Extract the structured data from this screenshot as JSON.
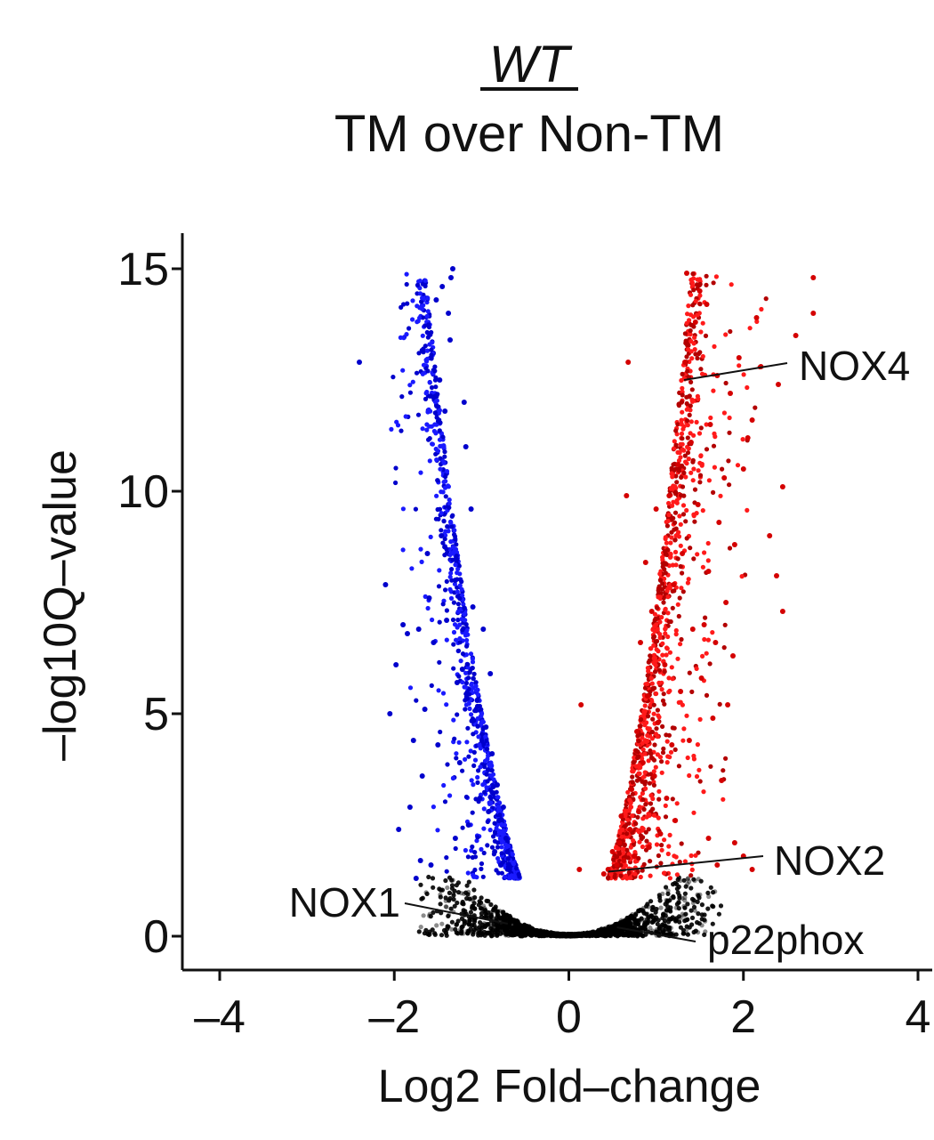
{
  "title": {
    "line1": "WT",
    "line2": "TM over Non-TM"
  },
  "colors": {
    "up": "#d40000",
    "down": "#0000cc",
    "ns": "#000000",
    "axis": "#111111"
  },
  "chart_data": {
    "type": "scatter",
    "subtype": "volcano",
    "xlabel": "Log2 Fold–change",
    "ylabel": "–log10Q–value",
    "xlim": [
      -4.2,
      4.1
    ],
    "ylim": [
      -0.8,
      15.8
    ],
    "x_ticks": [
      {
        "value": -4,
        "label": "–4"
      },
      {
        "value": -2,
        "label": "–2"
      },
      {
        "value": 0,
        "label": "0"
      },
      {
        "value": 2,
        "label": "2"
      },
      {
        "value": 4,
        "label": "4"
      }
    ],
    "y_ticks": [
      {
        "value": 0,
        "label": "0"
      },
      {
        "value": 5,
        "label": "5"
      },
      {
        "value": 10,
        "label": "10"
      },
      {
        "value": 15,
        "label": "15"
      }
    ],
    "grid": false,
    "legend": "none",
    "significance_threshold_y": 1.3,
    "series": [
      {
        "group": "down",
        "points": [
          [
            -2.4,
            12.9
          ],
          [
            -2.1,
            7.9
          ],
          [
            -2.05,
            5.0
          ],
          [
            -1.98,
            6.1
          ],
          [
            -1.95,
            2.4
          ],
          [
            -1.9,
            7.0
          ],
          [
            -1.85,
            6.8
          ],
          [
            -1.82,
            2.9
          ],
          [
            -1.78,
            4.4
          ],
          [
            -1.72,
            6.9
          ],
          [
            -1.7,
            1.7
          ],
          [
            -1.68,
            3.6
          ],
          [
            -1.65,
            5.1
          ],
          [
            -1.62,
            8.6
          ],
          [
            -1.6,
            7.6
          ],
          [
            -1.58,
            1.6
          ],
          [
            -1.55,
            6.6
          ],
          [
            -1.52,
            14.3
          ],
          [
            -1.5,
            4.3
          ],
          [
            -1.48,
            12.5
          ],
          [
            -1.46,
            9.0
          ],
          [
            -1.45,
            14.6
          ],
          [
            -1.42,
            11.8
          ],
          [
            -1.4,
            7.1
          ],
          [
            -1.38,
            14.0
          ],
          [
            -1.36,
            13.4
          ],
          [
            -1.35,
            14.8
          ],
          [
            -1.33,
            15.0
          ],
          [
            -1.3,
            8.0
          ],
          [
            -1.28,
            5.7
          ],
          [
            -1.25,
            3.9
          ],
          [
            -1.22,
            6.0
          ],
          [
            -1.2,
            12.0
          ],
          [
            -1.18,
            11.0
          ],
          [
            -1.15,
            2.5
          ],
          [
            -1.12,
            9.6
          ],
          [
            -1.1,
            7.4
          ],
          [
            -1.05,
            5.3
          ],
          [
            -1.02,
            3.1
          ],
          [
            -0.98,
            6.9
          ],
          [
            -0.95,
            4.7
          ],
          [
            -0.92,
            2.8
          ],
          [
            -0.9,
            5.9
          ],
          [
            -0.88,
            4.1
          ],
          [
            -0.85,
            1.9
          ],
          [
            -0.82,
            3.4
          ],
          [
            -0.8,
            2.6
          ],
          [
            -0.78,
            1.6
          ],
          [
            -0.75,
            2.9
          ],
          [
            -0.72,
            2.2
          ],
          [
            -0.7,
            1.9
          ],
          [
            -0.68,
            1.5
          ],
          [
            -1.75,
            1.3
          ],
          [
            -1.3,
            2.2
          ]
        ]
      },
      {
        "group": "up",
        "points": [
          [
            2.8,
            14.8
          ],
          [
            2.8,
            14.0
          ],
          [
            2.6,
            13.5
          ],
          [
            2.45,
            10.1
          ],
          [
            2.45,
            7.3
          ],
          [
            2.4,
            12.4
          ],
          [
            2.38,
            8.1
          ],
          [
            2.3,
            9.0
          ],
          [
            2.2,
            12.8
          ],
          [
            2.15,
            13.9
          ],
          [
            2.1,
            11.6
          ],
          [
            2.05,
            11.2
          ],
          [
            2.0,
            10.5
          ],
          [
            1.95,
            13.0
          ],
          [
            1.9,
            8.8
          ],
          [
            1.88,
            6.3
          ],
          [
            1.85,
            12.2
          ],
          [
            1.82,
            5.2
          ],
          [
            1.8,
            7.5
          ],
          [
            1.78,
            10.3
          ],
          [
            1.75,
            3.5
          ],
          [
            1.72,
            9.3
          ],
          [
            1.7,
            12.6
          ],
          [
            1.68,
            6.6
          ],
          [
            1.65,
            4.9
          ],
          [
            1.62,
            11.5
          ],
          [
            1.6,
            8.2
          ],
          [
            1.58,
            14.2
          ],
          [
            1.55,
            7.0
          ],
          [
            1.52,
            5.8
          ],
          [
            1.5,
            14.5
          ],
          [
            1.48,
            9.7
          ],
          [
            1.45,
            13.8
          ],
          [
            1.42,
            6.9
          ],
          [
            1.4,
            11.1
          ],
          [
            1.38,
            4.4
          ],
          [
            1.35,
            14.9
          ],
          [
            1.33,
            12.9
          ],
          [
            1.3,
            8.6
          ],
          [
            1.28,
            5.5
          ],
          [
            1.25,
            10.6
          ],
          [
            1.22,
            2.6
          ],
          [
            1.2,
            7.9
          ],
          [
            1.18,
            4.3
          ],
          [
            1.15,
            9.9
          ],
          [
            1.12,
            3.1
          ],
          [
            1.1,
            6.1
          ],
          [
            1.05,
            2.3
          ],
          [
            1.02,
            4.8
          ],
          [
            1.0,
            9.6
          ],
          [
            0.98,
            3.6
          ],
          [
            0.95,
            7.3
          ],
          [
            0.92,
            2.0
          ],
          [
            0.9,
            5.4
          ],
          [
            0.88,
            8.4
          ],
          [
            0.85,
            3.9
          ],
          [
            0.82,
            6.6
          ],
          [
            0.8,
            2.8
          ],
          [
            0.78,
            4.6
          ],
          [
            0.75,
            1.8
          ],
          [
            0.72,
            3.3
          ],
          [
            0.7,
            2.4
          ],
          [
            0.68,
            12.9
          ],
          [
            0.66,
            9.9
          ],
          [
            0.63,
            1.7
          ],
          [
            0.6,
            2.7
          ],
          [
            0.58,
            2.1
          ],
          [
            0.55,
            1.6
          ],
          [
            0.5,
            1.9
          ],
          [
            0.45,
            1.5
          ],
          [
            0.4,
            1.4
          ],
          [
            0.14,
            5.2
          ],
          [
            0.12,
            1.5
          ],
          [
            1.9,
            2.1
          ],
          [
            2.0,
            1.8
          ],
          [
            1.6,
            2.2
          ],
          [
            2.1,
            1.5
          ],
          [
            1.7,
            1.6
          ]
        ]
      }
    ],
    "annotations": [
      {
        "label": "NOX4",
        "point": [
          1.32,
          12.5
        ]
      },
      {
        "label": "NOX2",
        "point": [
          0.45,
          1.45
        ]
      },
      {
        "label": "NOX1",
        "point": [
          -0.7,
          0.28
        ]
      },
      {
        "label": "p22phox",
        "point": [
          0.55,
          0.2
        ]
      }
    ]
  }
}
